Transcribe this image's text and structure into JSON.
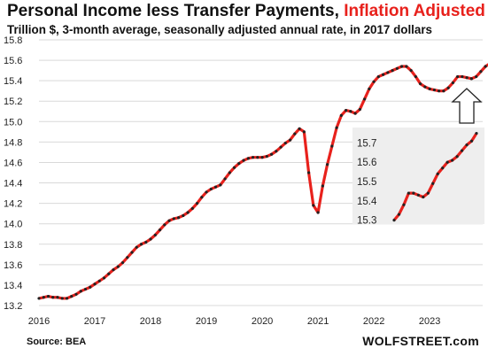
{
  "header": {
    "title_main": "Personal Income less Transfer Payments, ",
    "title_highlight": "Inflation Adjusted",
    "subtitle": "Trillion $, 3-month average, seasonally adjusted annual rate, in 2017 dollars"
  },
  "footer": {
    "source": "Source: BEA",
    "brand": "WOLFSTREET.com"
  },
  "colors": {
    "line": "#e8211c",
    "marker": "#222222",
    "grid": "#d9d9d9",
    "inset_bg": "#eeeeee"
  },
  "chart_data": [
    {
      "type": "line",
      "title": "Personal Income less Transfer Payments, Inflation Adjusted",
      "subtitle": "Trillion $, 3-month average, seasonally adjusted annual rate, in 2017 dollars",
      "x_ticks": [
        "2016",
        "2017",
        "2018",
        "2019",
        "2020",
        "2021",
        "2022",
        "2023"
      ],
      "y_ticks": [
        "13.2",
        "13.4",
        "13.6",
        "13.8",
        "14.0",
        "14.2",
        "14.4",
        "14.6",
        "14.8",
        "15.0",
        "15.2",
        "15.4",
        "15.6",
        "15.8"
      ],
      "ylim": [
        13.2,
        15.8
      ],
      "xlim": [
        2016.0,
        2023.95
      ],
      "grid": "horizontal",
      "series": [
        {
          "x_start": 2016.0,
          "x_step_months": 1,
          "values": [
            13.27,
            13.28,
            13.29,
            13.28,
            13.28,
            13.27,
            13.27,
            13.29,
            13.31,
            13.34,
            13.36,
            13.38,
            13.41,
            13.44,
            13.47,
            13.51,
            13.55,
            13.58,
            13.62,
            13.67,
            13.72,
            13.77,
            13.8,
            13.82,
            13.85,
            13.89,
            13.94,
            13.99,
            14.03,
            14.05,
            14.06,
            14.08,
            14.11,
            14.15,
            14.2,
            14.26,
            14.31,
            14.34,
            14.36,
            14.38,
            14.44,
            14.5,
            14.55,
            14.59,
            14.62,
            14.64,
            14.65,
            14.65,
            14.65,
            14.66,
            14.68,
            14.71,
            14.75,
            14.79,
            14.82,
            14.88,
            14.93,
            14.9,
            14.5,
            14.18,
            14.11,
            14.37,
            14.58,
            14.76,
            14.94,
            15.06,
            15.11,
            15.1,
            15.08,
            15.12,
            15.22,
            15.32,
            15.39,
            15.44,
            15.46,
            15.48,
            15.5,
            15.52,
            15.54,
            15.54,
            15.5,
            15.44,
            15.37,
            15.34,
            15.32,
            15.31,
            15.3,
            15.3,
            15.33,
            15.38,
            15.44,
            15.44,
            15.43,
            15.42,
            15.44,
            15.49,
            15.54,
            15.57,
            15.6,
            15.61,
            15.63,
            15.66,
            15.69,
            15.71,
            15.75
          ]
        }
      ]
    },
    {
      "type": "line",
      "title": "inset",
      "y_ticks": [
        "15.3",
        "15.4",
        "15.5",
        "15.6",
        "15.7"
      ],
      "ylim": [
        15.28,
        15.78
      ],
      "series": [
        {
          "values": [
            15.3,
            15.33,
            15.38,
            15.44,
            15.44,
            15.43,
            15.42,
            15.44,
            15.49,
            15.54,
            15.57,
            15.6,
            15.61,
            15.63,
            15.66,
            15.69,
            15.71,
            15.75
          ]
        }
      ]
    }
  ]
}
